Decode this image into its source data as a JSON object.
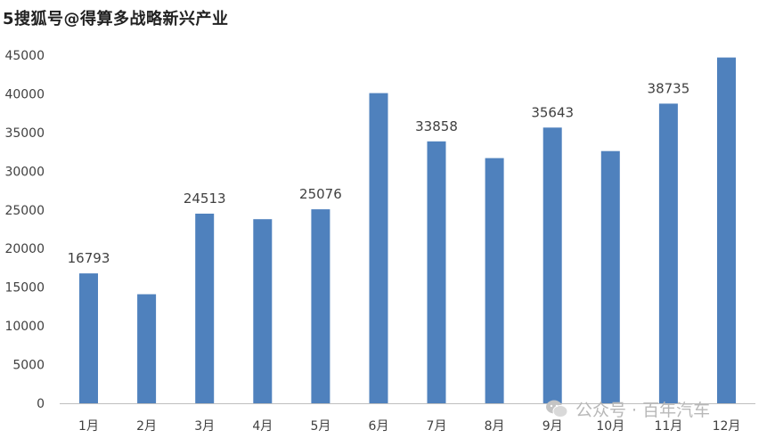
{
  "watermark_top": "5搜狐号@得算多战略新兴产业",
  "watermark_bottom": "公众号 · 百年汽车",
  "chart_data": {
    "type": "bar",
    "categories": [
      "1月",
      "2月",
      "3月",
      "4月",
      "5月",
      "6月",
      "7月",
      "8月",
      "9月",
      "10月",
      "11月",
      "12月"
    ],
    "values": [
      16793,
      14100,
      24513,
      23800,
      25076,
      40100,
      33858,
      31700,
      35643,
      32600,
      38735,
      44700
    ],
    "data_labels": [
      "16793",
      "",
      "24513",
      "",
      "25076",
      "",
      "33858",
      "",
      "35643",
      "",
      "38735",
      ""
    ],
    "title": "",
    "xlabel": "",
    "ylabel": "",
    "ylim": [
      0,
      45000
    ],
    "yticks": [
      0,
      5000,
      10000,
      15000,
      20000,
      25000,
      30000,
      35000,
      40000,
      45000
    ],
    "grid": false,
    "legend": "none",
    "bar_color": "#4f81bd"
  }
}
